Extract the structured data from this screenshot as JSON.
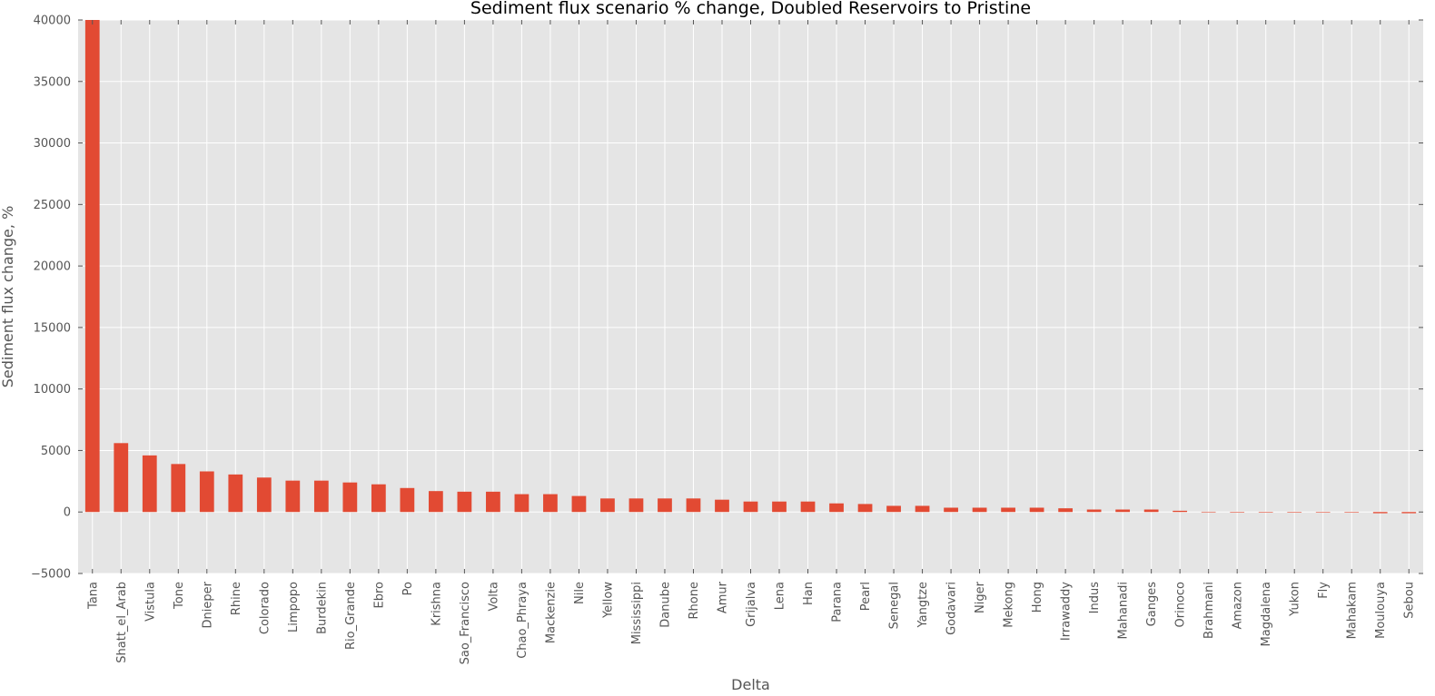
{
  "chart_data": {
    "type": "bar",
    "title": "Sediment flux scenario % change, Doubled Reservoirs to Pristine",
    "xlabel": "Delta",
    "ylabel": "Sediment flux change, %",
    "ylim": [
      -5000,
      40000
    ],
    "yticks": [
      -5000,
      0,
      5000,
      10000,
      15000,
      20000,
      25000,
      30000,
      35000,
      40000
    ],
    "ytick_labels": [
      "−5000",
      "0",
      "5000",
      "10000",
      "15000",
      "20000",
      "25000",
      "30000",
      "35000",
      "40000"
    ],
    "grid": true,
    "categories": [
      "Tana",
      "Shatt_el_Arab",
      "Vistula",
      "Tone",
      "Dnieper",
      "Rhine",
      "Colorado",
      "Limpopo",
      "Burdekin",
      "Rio_Grande",
      "Ebro",
      "Po",
      "Krishna",
      "Sao_Francisco",
      "Volta",
      "Chao_Phraya",
      "Mackenzie",
      "Nile",
      "Yellow",
      "Mississippi",
      "Danube",
      "Rhone",
      "Amur",
      "Grijalva",
      "Lena",
      "Han",
      "Parana",
      "Pearl",
      "Senegal",
      "Yangtze",
      "Godavari",
      "Niger",
      "Mekong",
      "Hong",
      "Irrawaddy",
      "Indus",
      "Mahanadi",
      "Ganges",
      "Orinoco",
      "Brahmani",
      "Amazon",
      "Magdalena",
      "Yukon",
      "Fly",
      "Mahakam",
      "Moulouya",
      "Sebou"
    ],
    "values": [
      40000,
      5600,
      4600,
      3900,
      3300,
      3050,
      2800,
      2550,
      2550,
      2400,
      2250,
      1950,
      1700,
      1650,
      1650,
      1450,
      1450,
      1300,
      1100,
      1100,
      1100,
      1100,
      1000,
      850,
      850,
      850,
      700,
      650,
      500,
      500,
      350,
      350,
      350,
      350,
      300,
      200,
      200,
      200,
      100,
      20,
      10,
      10,
      10,
      -20,
      -40,
      -100,
      -100
    ],
    "colors": {
      "bar": "#e24a33",
      "plot_background": "#e5e5e5",
      "grid": "#ffffff",
      "tick_text": "#555555",
      "title_text": "#000000"
    }
  }
}
